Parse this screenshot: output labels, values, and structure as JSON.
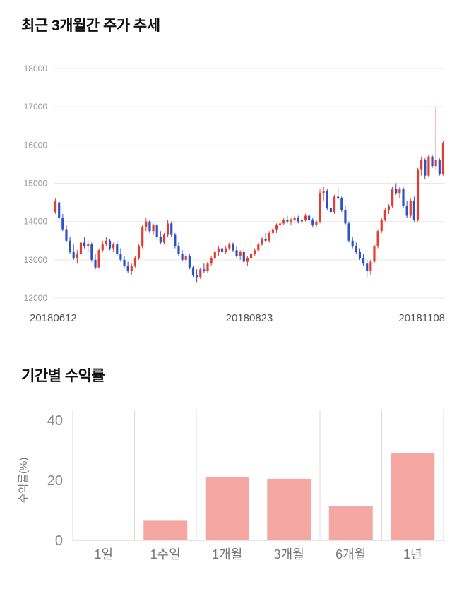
{
  "page": {
    "background": "#ffffff"
  },
  "chart_data": [
    {
      "type": "candlestick",
      "title": "최근 3개월간 주가 추세",
      "ylim": [
        12000,
        18000
      ],
      "yticks": [
        12000,
        13000,
        14000,
        15000,
        16000,
        17000,
        18000
      ],
      "x_labels": [
        "20180612",
        "20180823",
        "20181108"
      ],
      "up_color": "#e23d33",
      "down_color": "#2e51c4",
      "grid_color": "#e9e9e9",
      "axis_color": "#999999",
      "xlabel_color": "#555555",
      "grid": "horizontal",
      "legend": "none",
      "candles": [
        [
          14250,
          14600,
          14200,
          14550
        ],
        [
          14500,
          14550,
          14050,
          14100
        ],
        [
          14100,
          14200,
          13750,
          13800
        ],
        [
          13800,
          13900,
          13450,
          13500
        ],
        [
          13500,
          13600,
          13150,
          13200
        ],
        [
          13200,
          13400,
          13000,
          13050
        ],
        [
          13050,
          13250,
          12900,
          13150
        ],
        [
          13150,
          13500,
          13100,
          13450
        ],
        [
          13450,
          13600,
          13300,
          13350
        ],
        [
          13350,
          13500,
          13200,
          13400
        ],
        [
          13400,
          13450,
          12950,
          13000
        ],
        [
          13000,
          13150,
          12750,
          12800
        ],
        [
          12800,
          13300,
          12780,
          13250
        ],
        [
          13250,
          13500,
          13200,
          13400
        ],
        [
          13400,
          13600,
          13350,
          13500
        ],
        [
          13500,
          13550,
          13250,
          13300
        ],
        [
          13300,
          13450,
          13200,
          13400
        ],
        [
          13400,
          13500,
          13100,
          13150
        ],
        [
          13150,
          13300,
          12950,
          13000
        ],
        [
          13000,
          13100,
          12800,
          12850
        ],
        [
          12850,
          12950,
          12650,
          12700
        ],
        [
          12700,
          12900,
          12600,
          12850
        ],
        [
          12850,
          13100,
          12800,
          13050
        ],
        [
          13050,
          13400,
          13000,
          13350
        ],
        [
          13350,
          13900,
          13300,
          13850
        ],
        [
          13850,
          14100,
          13750,
          14000
        ],
        [
          14000,
          14050,
          13700,
          13750
        ],
        [
          13750,
          13950,
          13650,
          13900
        ],
        [
          13900,
          13950,
          13550,
          13600
        ],
        [
          13600,
          13750,
          13400,
          13450
        ],
        [
          13450,
          13700,
          13400,
          13650
        ],
        [
          13650,
          14050,
          13600,
          13950
        ],
        [
          13950,
          14000,
          13600,
          13650
        ],
        [
          13650,
          13700,
          13300,
          13350
        ],
        [
          13350,
          13450,
          13100,
          13150
        ],
        [
          13150,
          13250,
          12950,
          13000
        ],
        [
          13000,
          13150,
          12900,
          13100
        ],
        [
          13100,
          13150,
          12750,
          12800
        ],
        [
          12800,
          12850,
          12550,
          12600
        ],
        [
          12600,
          12750,
          12400,
          12550
        ],
        [
          12550,
          12800,
          12500,
          12750
        ],
        [
          12750,
          12900,
          12650,
          12700
        ],
        [
          12700,
          12950,
          12650,
          12900
        ],
        [
          12900,
          13100,
          12850,
          13050
        ],
        [
          13050,
          13250,
          13000,
          13200
        ],
        [
          13200,
          13350,
          13100,
          13300
        ],
        [
          13300,
          13400,
          13150,
          13200
        ],
        [
          13200,
          13350,
          13150,
          13300
        ],
        [
          13300,
          13450,
          13250,
          13400
        ],
        [
          13400,
          13450,
          13200,
          13250
        ],
        [
          13250,
          13350,
          13050,
          13100
        ],
        [
          13100,
          13250,
          13000,
          13200
        ],
        [
          13200,
          13300,
          12900,
          12950
        ],
        [
          12950,
          13100,
          12850,
          13050
        ],
        [
          13050,
          13200,
          13000,
          13150
        ],
        [
          13150,
          13300,
          13100,
          13250
        ],
        [
          13250,
          13450,
          13200,
          13400
        ],
        [
          13400,
          13600,
          13350,
          13550
        ],
        [
          13550,
          13700,
          13450,
          13500
        ],
        [
          13500,
          13750,
          13450,
          13700
        ],
        [
          13700,
          13850,
          13650,
          13800
        ],
        [
          13800,
          13950,
          13700,
          13900
        ],
        [
          13900,
          14000,
          13800,
          13950
        ],
        [
          13950,
          14100,
          13900,
          14050
        ],
        [
          14050,
          14150,
          13950,
          14000
        ],
        [
          14000,
          14100,
          13900,
          14050
        ],
        [
          14050,
          14150,
          14000,
          14100
        ],
        [
          14100,
          14150,
          13950,
          14000
        ],
        [
          14000,
          14100,
          13900,
          14050
        ],
        [
          14050,
          14200,
          14000,
          14150
        ],
        [
          14150,
          14200,
          14000,
          14050
        ],
        [
          14050,
          14100,
          13850,
          13900
        ],
        [
          13900,
          14050,
          13850,
          14000
        ],
        [
          14000,
          14850,
          13950,
          14750
        ],
        [
          14750,
          14900,
          14550,
          14800
        ],
        [
          14800,
          14850,
          14300,
          14350
        ],
        [
          14350,
          14500,
          14200,
          14250
        ],
        [
          14250,
          14700,
          14200,
          14650
        ],
        [
          14650,
          14900,
          14550,
          14600
        ],
        [
          14600,
          14650,
          14250,
          14300
        ],
        [
          14300,
          14400,
          13900,
          13950
        ],
        [
          13950,
          14000,
          13450,
          13500
        ],
        [
          13500,
          13600,
          13300,
          13350
        ],
        [
          13350,
          13450,
          13150,
          13200
        ],
        [
          13200,
          13300,
          13000,
          13050
        ],
        [
          13050,
          13150,
          12850,
          12900
        ],
        [
          12900,
          13000,
          12550,
          12700
        ],
        [
          12700,
          13000,
          12600,
          12950
        ],
        [
          12950,
          13400,
          12900,
          13350
        ],
        [
          13350,
          13800,
          13300,
          13750
        ],
        [
          13750,
          14100,
          13700,
          14050
        ],
        [
          14050,
          14350,
          14000,
          14300
        ],
        [
          14300,
          14450,
          14200,
          14400
        ],
        [
          14400,
          14900,
          14350,
          14850
        ],
        [
          14850,
          15000,
          14700,
          14750
        ],
        [
          14750,
          14900,
          14600,
          14850
        ],
        [
          14850,
          14900,
          14350,
          14400
        ],
        [
          14400,
          14550,
          14100,
          14150
        ],
        [
          14150,
          14600,
          14100,
          14550
        ],
        [
          14550,
          14650,
          14000,
          14050
        ],
        [
          14050,
          15400,
          14000,
          15350
        ],
        [
          15350,
          15700,
          15200,
          15600
        ],
        [
          15600,
          15650,
          15100,
          15200
        ],
        [
          15200,
          15750,
          15150,
          15700
        ],
        [
          15700,
          15750,
          15400,
          15450
        ],
        [
          15450,
          17000,
          15350,
          15600
        ],
        [
          15600,
          15650,
          15200,
          15250
        ],
        [
          15250,
          16100,
          15200,
          16050
        ]
      ]
    },
    {
      "type": "bar",
      "title": "기간별 수익률",
      "categories": [
        "1일",
        "1주일",
        "1개월",
        "3개월",
        "6개월",
        "1년"
      ],
      "values": [
        0,
        6.5,
        21,
        20.5,
        11.5,
        29
      ],
      "xlabel": "",
      "ylabel": "수익률(%)",
      "yticks": [
        0,
        20,
        40
      ],
      "ylim": [
        0,
        40
      ],
      "bar_color": "#f4a7a3",
      "grid_color": "#dddddd",
      "baseline_color": "#cccccc",
      "axis_color": "#888888",
      "category_color": "#777777",
      "grid": "vertical",
      "legend": "none"
    }
  ]
}
